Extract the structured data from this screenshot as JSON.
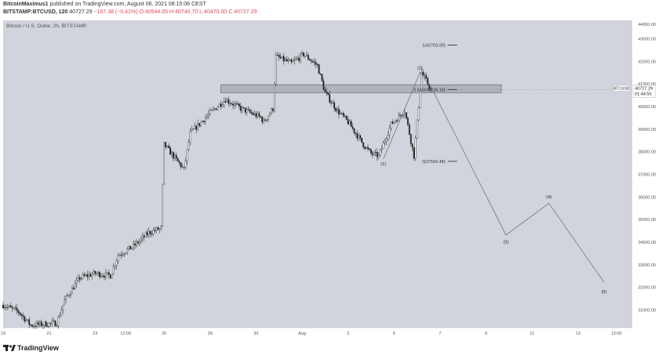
{
  "header": {
    "author": "BitcoinMaximus1",
    "published": "published on TradingView.com, August 06, 2021 08:15:06 CEST",
    "symbol": "BITSTAMP:BTCUSD, 120",
    "last": "40727.29",
    "change": "−167.38 (−0.41%)",
    "ohlc": "O:40544.05 H:40740.70 L:40470.00 C:40727.29"
  },
  "footer": {
    "logo_text": "TradingView"
  },
  "chart_data": {
    "type": "candlestick",
    "title": "Bitcoin / U.S. Dollar, 2h, BITSTAMP",
    "ylim": [
      30200,
      43800
    ],
    "y_ticks": [
      {
        "value": 31000,
        "label": "31000.00"
      },
      {
        "value": 32000,
        "label": "32000.00"
      },
      {
        "value": 33000,
        "label": "33000.00"
      },
      {
        "value": 34000,
        "label": "34000.00"
      },
      {
        "value": 35000,
        "label": "35000.00"
      },
      {
        "value": 36000,
        "label": "36000.00"
      },
      {
        "value": 37000,
        "label": "37000.00"
      },
      {
        "value": 38000,
        "label": "38000.00"
      },
      {
        "value": 39000,
        "label": "39000.00"
      },
      {
        "value": 40000,
        "label": "40000.00"
      },
      {
        "value": 41000,
        "label": "41000.00"
      },
      {
        "value": 42000,
        "label": "42000.00"
      },
      {
        "value": 43000,
        "label": "43000.00"
      }
    ],
    "y_top_tick_label": "44000.00",
    "x_range": [
      0,
      41
    ],
    "x_ticks": [
      {
        "x": 0,
        "label": "19"
      },
      {
        "x": 3,
        "label": "21"
      },
      {
        "x": 6,
        "label": "23"
      },
      {
        "x": 8,
        "label": "12:00"
      },
      {
        "x": 10.5,
        "label": "26"
      },
      {
        "x": 13.5,
        "label": "28"
      },
      {
        "x": 16.5,
        "label": "30"
      },
      {
        "x": 19.5,
        "label": "Aug"
      },
      {
        "x": 22.5,
        "label": "3"
      },
      {
        "x": 25.5,
        "label": "5"
      },
      {
        "x": 28.5,
        "label": "7"
      },
      {
        "x": 31.5,
        "label": "9"
      },
      {
        "x": 34.5,
        "label": "11"
      },
      {
        "x": 37.5,
        "label": "13"
      },
      {
        "x": 40,
        "label": "13:00"
      }
    ],
    "price_path": [
      [
        0,
        31200
      ],
      [
        1,
        30900
      ],
      [
        1.8,
        30300
      ],
      [
        3.5,
        30400
      ],
      [
        4,
        31400
      ],
      [
        5,
        32400
      ],
      [
        6,
        32600
      ],
      [
        7,
        32500
      ],
      [
        7.5,
        33400
      ],
      [
        8.5,
        33800
      ],
      [
        9.5,
        34400
      ],
      [
        10.3,
        34600
      ],
      [
        10.5,
        38300
      ],
      [
        11.8,
        37200
      ],
      [
        12.2,
        38800
      ],
      [
        13.5,
        39700
      ],
      [
        14.5,
        40300
      ],
      [
        15.5,
        39900
      ],
      [
        16.8,
        39500
      ],
      [
        17,
        39300
      ],
      [
        17.6,
        39900
      ],
      [
        17.8,
        42200
      ],
      [
        18.8,
        41900
      ],
      [
        19.6,
        42300
      ],
      [
        20.5,
        41800
      ],
      [
        21,
        40600
      ],
      [
        21.8,
        39800
      ],
      [
        22.5,
        39300
      ],
      [
        23.5,
        38300
      ],
      [
        24,
        37900
      ],
      [
        24.5,
        37800
      ],
      [
        25.3,
        39200
      ],
      [
        26.2,
        39800
      ],
      [
        26.8,
        37800
      ],
      [
        27.3,
        41500
      ],
      [
        28,
        40600
      ]
    ],
    "zone": {
      "from": 40600,
      "to": 40950,
      "x_start": 14.2,
      "x_end": 32.5
    },
    "fib_levels": [
      {
        "label": "1(42703.00)",
        "value": 42703
      },
      {
        "label": "0.618(40738.18)",
        "value": 40738.18
      },
      {
        "label": "0(37559.48)",
        "value": 37559.48
      }
    ],
    "wave_path": [
      [
        24.8,
        37650
      ],
      [
        27.2,
        41500
      ],
      [
        28.1,
        40600
      ],
      [
        32.8,
        34300
      ],
      [
        35.6,
        35700
      ],
      [
        39.2,
        32200
      ]
    ],
    "wave_labels": [
      {
        "label": "(1)",
        "x": 24.8,
        "y": 37450
      },
      {
        "label": "(2)",
        "x": 27.2,
        "y": 41700
      },
      {
        "label": "(3)",
        "x": 32.8,
        "y": 34000
      },
      {
        "label": "(4)",
        "x": 35.6,
        "y": 36000
      },
      {
        "label": "(5)",
        "x": 39.2,
        "y": 31800
      }
    ],
    "price_tag": {
      "symbol": "BTCUSD",
      "value": "40727.29",
      "countdown": "01:44:55",
      "y": 40727.29
    },
    "colors": {
      "background": "#d1d4dc",
      "candle": "#1a1a1a",
      "wave": "#666666",
      "zone": "#9598a1"
    }
  }
}
